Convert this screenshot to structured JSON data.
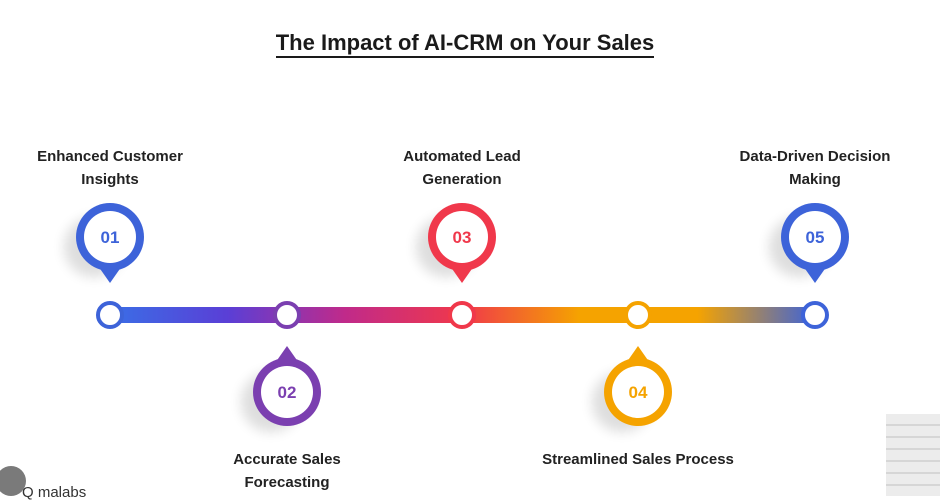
{
  "title": "The Impact of AI-CRM on Your Sales",
  "steps": [
    {
      "number": "01",
      "label_lines": [
        "Enhanced Customer",
        "Insights"
      ],
      "color": "#3d63d9",
      "position": "above"
    },
    {
      "number": "02",
      "label_lines": [
        "Accurate Sales",
        "Forecasting"
      ],
      "color": "#7b3fb0",
      "position": "below"
    },
    {
      "number": "03",
      "label_lines": [
        "Automated Lead",
        "Generation"
      ],
      "color": "#f0384b",
      "position": "above"
    },
    {
      "number": "04",
      "label_lines": [
        "Streamlined Sales Process"
      ],
      "color": "#f5a300",
      "position": "below"
    },
    {
      "number": "05",
      "label_lines": [
        "Data-Driven Decision",
        "Making"
      ],
      "color": "#3d63d9",
      "position": "above"
    }
  ],
  "timeline_gradient": [
    "#3a6ee6",
    "#5a3fd6",
    "#c02a8a",
    "#f0384b",
    "#f5a300",
    "#f5a300",
    "#3d63d9"
  ],
  "watermark": {
    "text": "Q malabs",
    "icon": "camera-icon"
  }
}
